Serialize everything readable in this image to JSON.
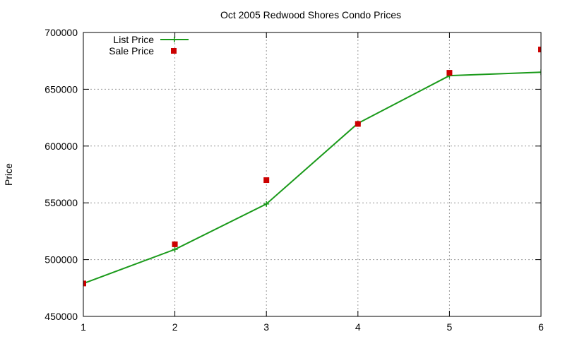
{
  "chart_data": {
    "type": "line",
    "title": "Oct 2005 Redwood Shores Condo Prices",
    "xlabel": "",
    "ylabel": "Price",
    "xlim": [
      1,
      6
    ],
    "ylim": [
      450000,
      700000
    ],
    "x_ticks": [
      "1",
      "2",
      "3",
      "4",
      "5",
      "6"
    ],
    "y_ticks": [
      "450000",
      "500000",
      "550000",
      "600000",
      "650000",
      "700000"
    ],
    "grid": true,
    "legend_position": "top-left",
    "series": [
      {
        "name": "List Price",
        "style": "line-with-plus-markers",
        "color": "#1a9a1a",
        "points": [
          [
            1,
            479000
          ],
          [
            2,
            509000
          ],
          [
            3,
            549000
          ],
          [
            4,
            620000
          ],
          [
            5,
            662000
          ],
          [
            6,
            665000
          ]
        ]
      },
      {
        "name": "Sale Price",
        "style": "square-markers",
        "color": "#cc0000",
        "points": [
          [
            1,
            479000
          ],
          [
            2,
            513500
          ],
          [
            3,
            570000
          ],
          [
            4,
            619500
          ],
          [
            5,
            664500
          ],
          [
            6,
            685000
          ]
        ]
      }
    ]
  }
}
